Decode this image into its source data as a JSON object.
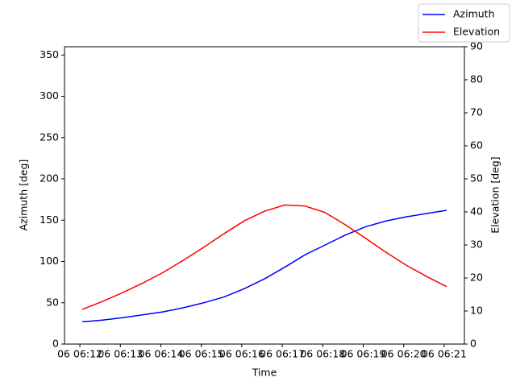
{
  "chart_data": {
    "type": "line",
    "xlabel": "Time",
    "ylabel": "Azimuth [deg]",
    "y2label": "Elevation [deg]",
    "x": [
      12.06,
      12.56,
      13.06,
      13.56,
      14.06,
      14.56,
      15.06,
      15.56,
      16.06,
      16.56,
      17.06,
      17.56,
      18.06,
      18.56,
      19.06,
      19.56,
      20.06,
      20.56,
      21.06
    ],
    "xlim": [
      11.62,
      21.5
    ],
    "xticks": [
      {
        "value": 12,
        "label": "06 06:12"
      },
      {
        "value": 13,
        "label": "06 06:13"
      },
      {
        "value": 14,
        "label": "06 06:14"
      },
      {
        "value": 15,
        "label": "06 06:15"
      },
      {
        "value": 16,
        "label": "06 06:16"
      },
      {
        "value": 17,
        "label": "06 06:17"
      },
      {
        "value": 18,
        "label": "06 06:18"
      },
      {
        "value": 19,
        "label": "06 06:19"
      },
      {
        "value": 20,
        "label": "06 06:20"
      },
      {
        "value": 21,
        "label": "06 06:21"
      }
    ],
    "ylim": [
      0,
      360
    ],
    "yticks": [
      0,
      50,
      100,
      150,
      200,
      250,
      300,
      350
    ],
    "y2lim": [
      0,
      90
    ],
    "y2ticks": [
      0,
      10,
      20,
      30,
      40,
      50,
      60,
      70,
      80,
      90
    ],
    "legend": "upper right",
    "series": [
      {
        "name": "Azimuth",
        "color": "#0000ff",
        "values": [
          27,
          29,
          32,
          35.5,
          39,
          44,
          50,
          57,
          67,
          79,
          93,
          108,
          120,
          132,
          142,
          149,
          154,
          158,
          162
        ]
      },
      {
        "name": "Elevation",
        "color": "#ff0000",
        "axis": "y2",
        "values": [
          10.5,
          12.9,
          15.6,
          18.5,
          21.7,
          25.4,
          29.3,
          33.4,
          37.3,
          40.2,
          42.1,
          41.8,
          39.8,
          36.1,
          32,
          27.8,
          23.9,
          20.5,
          17.4
        ]
      }
    ]
  }
}
